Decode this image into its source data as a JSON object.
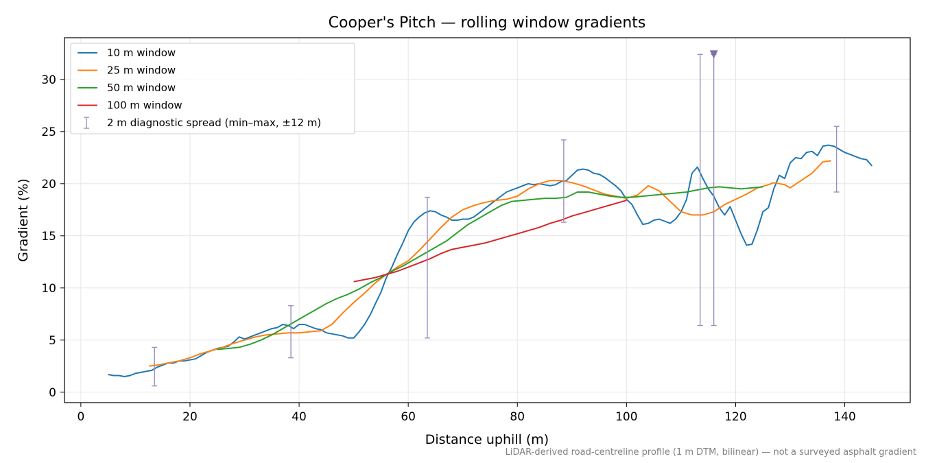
{
  "chart_data": {
    "type": "line",
    "title": "Cooper's Pitch — rolling window gradients",
    "xlabel": "Distance uphill (m)",
    "ylabel": "Gradient (%)",
    "xlim": [
      -3,
      152
    ],
    "ylim": [
      -1,
      34
    ],
    "xticks": [
      0,
      20,
      40,
      60,
      80,
      100,
      120,
      140
    ],
    "yticks": [
      0,
      5,
      10,
      15,
      20,
      25,
      30
    ],
    "grid": true,
    "legend_position": "top-left",
    "footnote": "LiDAR-derived road-centreline profile (1 m DTM, bilinear) — not a surveyed asphalt gradient",
    "series": [
      {
        "name": "10 m window",
        "color": "#1f77b4",
        "points": [
          [
            5,
            1.7
          ],
          [
            6,
            1.6
          ],
          [
            7,
            1.6
          ],
          [
            8,
            1.5
          ],
          [
            9,
            1.6
          ],
          [
            10,
            1.8
          ],
          [
            11,
            1.9
          ],
          [
            12,
            2.0
          ],
          [
            13,
            2.1
          ],
          [
            14,
            2.4
          ],
          [
            15,
            2.6
          ],
          [
            16,
            2.8
          ],
          [
            17,
            2.8
          ],
          [
            18,
            3.0
          ],
          [
            19,
            3.0
          ],
          [
            20,
            3.1
          ],
          [
            21,
            3.2
          ],
          [
            22,
            3.5
          ],
          [
            23,
            3.8
          ],
          [
            24,
            4.0
          ],
          [
            25,
            4.2
          ],
          [
            26,
            4.3
          ],
          [
            27,
            4.4
          ],
          [
            28,
            4.8
          ],
          [
            29,
            5.3
          ],
          [
            30,
            5.1
          ],
          [
            31,
            5.3
          ],
          [
            32,
            5.5
          ],
          [
            33,
            5.7
          ],
          [
            34,
            5.9
          ],
          [
            35,
            6.1
          ],
          [
            36,
            6.2
          ],
          [
            37,
            6.5
          ],
          [
            38,
            6.4
          ],
          [
            39,
            6.1
          ],
          [
            40,
            6.5
          ],
          [
            41,
            6.5
          ],
          [
            42,
            6.3
          ],
          [
            43,
            6.1
          ],
          [
            44,
            6.0
          ],
          [
            45,
            5.7
          ],
          [
            46,
            5.6
          ],
          [
            47,
            5.5
          ],
          [
            48,
            5.4
          ],
          [
            49,
            5.2
          ],
          [
            50,
            5.2
          ],
          [
            51,
            5.8
          ],
          [
            52,
            6.5
          ],
          [
            53,
            7.4
          ],
          [
            54,
            8.5
          ],
          [
            55,
            9.6
          ],
          [
            56,
            11.0
          ],
          [
            57,
            12.0
          ],
          [
            58,
            13.2
          ],
          [
            59,
            14.3
          ],
          [
            60,
            15.5
          ],
          [
            61,
            16.3
          ],
          [
            62,
            16.8
          ],
          [
            63,
            17.2
          ],
          [
            64,
            17.4
          ],
          [
            65,
            17.3
          ],
          [
            66,
            17.0
          ],
          [
            67,
            16.8
          ],
          [
            68,
            16.5
          ],
          [
            69,
            16.5
          ],
          [
            70,
            16.6
          ],
          [
            71,
            16.6
          ],
          [
            72,
            16.8
          ],
          [
            73,
            17.2
          ],
          [
            74,
            17.6
          ],
          [
            75,
            18.0
          ],
          [
            76,
            18.4
          ],
          [
            77,
            18.8
          ],
          [
            78,
            19.2
          ],
          [
            79,
            19.4
          ],
          [
            80,
            19.6
          ],
          [
            81,
            19.8
          ],
          [
            82,
            20.0
          ],
          [
            83,
            19.9
          ],
          [
            84,
            20.0
          ],
          [
            85,
            19.9
          ],
          [
            86,
            19.8
          ],
          [
            87,
            19.9
          ],
          [
            88,
            20.2
          ],
          [
            89,
            20.3
          ],
          [
            90,
            20.8
          ],
          [
            91,
            21.3
          ],
          [
            92,
            21.4
          ],
          [
            93,
            21.3
          ],
          [
            94,
            21.0
          ],
          [
            95,
            20.9
          ],
          [
            96,
            20.6
          ],
          [
            97,
            20.2
          ],
          [
            98,
            19.8
          ],
          [
            99,
            19.3
          ],
          [
            100,
            18.5
          ],
          [
            101,
            18.0
          ],
          [
            102,
            17.0
          ],
          [
            103,
            16.1
          ],
          [
            104,
            16.2
          ],
          [
            105,
            16.5
          ],
          [
            106,
            16.6
          ],
          [
            107,
            16.4
          ],
          [
            108,
            16.2
          ],
          [
            109,
            16.6
          ],
          [
            110,
            17.3
          ],
          [
            111,
            18.5
          ],
          [
            112,
            21.0
          ],
          [
            113,
            21.6
          ],
          [
            114,
            20.5
          ],
          [
            115,
            19.5
          ],
          [
            116,
            18.8
          ],
          [
            117,
            17.7
          ],
          [
            118,
            17.0
          ],
          [
            119,
            17.8
          ],
          [
            120,
            16.5
          ],
          [
            121,
            15.2
          ],
          [
            122,
            14.1
          ],
          [
            123,
            14.2
          ],
          [
            124,
            15.6
          ],
          [
            125,
            17.3
          ],
          [
            126,
            17.7
          ],
          [
            127,
            19.5
          ],
          [
            128,
            20.8
          ],
          [
            129,
            20.5
          ],
          [
            130,
            22.0
          ],
          [
            131,
            22.5
          ],
          [
            132,
            22.4
          ],
          [
            133,
            23.0
          ],
          [
            134,
            23.1
          ],
          [
            135,
            22.7
          ],
          [
            136,
            23.6
          ],
          [
            137,
            23.7
          ],
          [
            138,
            23.6
          ],
          [
            139,
            23.3
          ],
          [
            140,
            23.0
          ],
          [
            141,
            22.8
          ],
          [
            142,
            22.6
          ],
          [
            143,
            22.4
          ],
          [
            144,
            22.3
          ],
          [
            145,
            21.7
          ]
        ]
      },
      {
        "name": "25 m window",
        "color": "#ff7f0e",
        "points": [
          [
            12.5,
            2.5
          ],
          [
            14,
            2.6
          ],
          [
            16,
            2.8
          ],
          [
            18,
            3.0
          ],
          [
            20,
            3.3
          ],
          [
            22,
            3.7
          ],
          [
            24,
            4.0
          ],
          [
            26,
            4.3
          ],
          [
            28,
            4.7
          ],
          [
            30,
            5.0
          ],
          [
            32,
            5.3
          ],
          [
            34,
            5.5
          ],
          [
            36,
            5.6
          ],
          [
            38,
            5.7
          ],
          [
            40,
            5.7
          ],
          [
            42,
            5.8
          ],
          [
            44,
            5.9
          ],
          [
            46,
            6.5
          ],
          [
            48,
            7.6
          ],
          [
            50,
            8.6
          ],
          [
            52,
            9.5
          ],
          [
            54,
            10.5
          ],
          [
            56,
            11.3
          ],
          [
            58,
            12.0
          ],
          [
            60,
            12.6
          ],
          [
            62,
            13.6
          ],
          [
            64,
            14.7
          ],
          [
            66,
            15.8
          ],
          [
            68,
            16.8
          ],
          [
            70,
            17.5
          ],
          [
            72,
            17.9
          ],
          [
            74,
            18.2
          ],
          [
            76,
            18.4
          ],
          [
            78,
            18.5
          ],
          [
            80,
            18.8
          ],
          [
            82,
            19.5
          ],
          [
            84,
            20.0
          ],
          [
            86,
            20.3
          ],
          [
            88,
            20.3
          ],
          [
            90,
            20.1
          ],
          [
            92,
            19.8
          ],
          [
            94,
            19.4
          ],
          [
            96,
            19.0
          ],
          [
            98,
            18.8
          ],
          [
            100,
            18.6
          ],
          [
            102,
            18.9
          ],
          [
            104,
            19.8
          ],
          [
            106,
            19.3
          ],
          [
            108,
            18.3
          ],
          [
            110,
            17.3
          ],
          [
            112,
            17.0
          ],
          [
            114,
            17.0
          ],
          [
            116,
            17.3
          ],
          [
            118,
            18.0
          ],
          [
            120,
            18.5
          ],
          [
            122,
            19.0
          ],
          [
            124,
            19.6
          ],
          [
            126,
            19.9
          ],
          [
            127,
            20.1
          ],
          [
            128,
            20.0
          ],
          [
            129,
            19.9
          ],
          [
            130,
            19.6
          ],
          [
            132,
            20.3
          ],
          [
            134,
            21.0
          ],
          [
            136,
            22.1
          ],
          [
            137.5,
            22.2
          ]
        ]
      },
      {
        "name": "50 m window",
        "color": "#2ca02c",
        "points": [
          [
            25,
            4.1
          ],
          [
            27,
            4.2
          ],
          [
            29,
            4.3
          ],
          [
            31,
            4.6
          ],
          [
            33,
            5.0
          ],
          [
            35,
            5.5
          ],
          [
            37,
            6.1
          ],
          [
            39,
            6.7
          ],
          [
            41,
            7.3
          ],
          [
            43,
            7.9
          ],
          [
            45,
            8.5
          ],
          [
            47,
            9.0
          ],
          [
            49,
            9.4
          ],
          [
            51,
            9.9
          ],
          [
            53,
            10.5
          ],
          [
            55,
            11.0
          ],
          [
            57,
            11.6
          ],
          [
            59,
            12.1
          ],
          [
            61,
            12.7
          ],
          [
            63,
            13.3
          ],
          [
            65,
            13.9
          ],
          [
            67,
            14.5
          ],
          [
            69,
            15.3
          ],
          [
            71,
            16.1
          ],
          [
            73,
            16.7
          ],
          [
            75,
            17.3
          ],
          [
            77,
            17.9
          ],
          [
            79,
            18.3
          ],
          [
            81,
            18.4
          ],
          [
            83,
            18.5
          ],
          [
            85,
            18.6
          ],
          [
            87,
            18.6
          ],
          [
            89,
            18.7
          ],
          [
            91,
            19.2
          ],
          [
            93,
            19.2
          ],
          [
            95,
            19.0
          ],
          [
            97,
            18.8
          ],
          [
            99,
            18.7
          ],
          [
            101,
            18.7
          ],
          [
            103,
            18.8
          ],
          [
            105,
            18.9
          ],
          [
            107,
            19.0
          ],
          [
            109,
            19.1
          ],
          [
            111,
            19.2
          ],
          [
            113,
            19.4
          ],
          [
            115,
            19.6
          ],
          [
            117,
            19.7
          ],
          [
            119,
            19.6
          ],
          [
            121,
            19.5
          ],
          [
            123,
            19.6
          ],
          [
            125,
            19.7
          ]
        ]
      },
      {
        "name": "100 m window",
        "color": "#d62728",
        "points": [
          [
            50,
            10.6
          ],
          [
            52,
            10.8
          ],
          [
            54,
            11.0
          ],
          [
            56,
            11.3
          ],
          [
            58,
            11.6
          ],
          [
            60,
            12.0
          ],
          [
            62,
            12.4
          ],
          [
            64,
            12.8
          ],
          [
            66,
            13.3
          ],
          [
            68,
            13.7
          ],
          [
            70,
            13.9
          ],
          [
            72,
            14.1
          ],
          [
            74,
            14.3
          ],
          [
            76,
            14.6
          ],
          [
            78,
            14.9
          ],
          [
            80,
            15.2
          ],
          [
            82,
            15.5
          ],
          [
            84,
            15.8
          ],
          [
            86,
            16.2
          ],
          [
            88,
            16.5
          ],
          [
            90,
            16.9
          ],
          [
            92,
            17.2
          ],
          [
            94,
            17.5
          ],
          [
            96,
            17.8
          ],
          [
            98,
            18.1
          ],
          [
            100,
            18.4
          ]
        ]
      }
    ],
    "diagnostic_spread": {
      "name": "2 m diagnostic spread (min–max, ±12 m)",
      "color": "#9a8fbf",
      "bars": [
        [
          13.5,
          0.6,
          4.3
        ],
        [
          38.5,
          3.3,
          8.3
        ],
        [
          63.5,
          5.2,
          18.7
        ],
        [
          88.5,
          16.3,
          24.2
        ],
        [
          113.5,
          6.4,
          32.4
        ],
        [
          116.0,
          6.4,
          32.4
        ],
        [
          138.5,
          19.2,
          25.5
        ]
      ],
      "clipped_marker": [
        116.0,
        32.4
      ]
    }
  }
}
